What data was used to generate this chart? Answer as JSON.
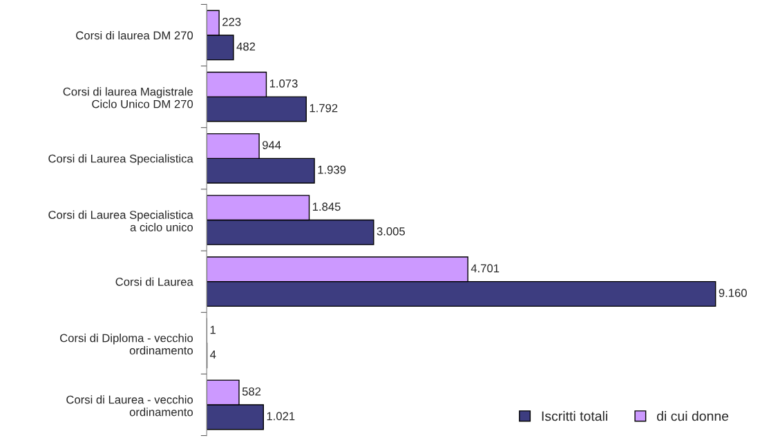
{
  "chart_data": {
    "type": "bar",
    "orientation": "horizontal",
    "categories": [
      "Corsi di laurea DM 270",
      "Corsi di laurea Magistrale\nCiclo Unico DM 270",
      "Corsi di Laurea Specialistica",
      "Corsi di Laurea Specialistica\na ciclo unico",
      "Corsi di Laurea",
      "Corsi di Diploma - vecchio\nordinamento",
      "Corsi di Laurea - vecchio\nordinamento"
    ],
    "series": [
      {
        "name": "Iscritti totali",
        "color": "#3d3d80",
        "values": [
          482,
          1792,
          1939,
          3005,
          9160,
          4,
          1021
        ],
        "value_labels": [
          "482",
          "1.792",
          "1.939",
          "3.005",
          "9.160",
          "4",
          "1.021"
        ]
      },
      {
        "name": "di cui donne",
        "color": "#cc99ff",
        "values": [
          223,
          1073,
          944,
          1845,
          4701,
          1,
          582
        ],
        "value_labels": [
          "223",
          "1.073",
          "944",
          "1.845",
          "4.701",
          "1",
          "582"
        ]
      }
    ],
    "legend": "bottom right",
    "grid": false
  }
}
